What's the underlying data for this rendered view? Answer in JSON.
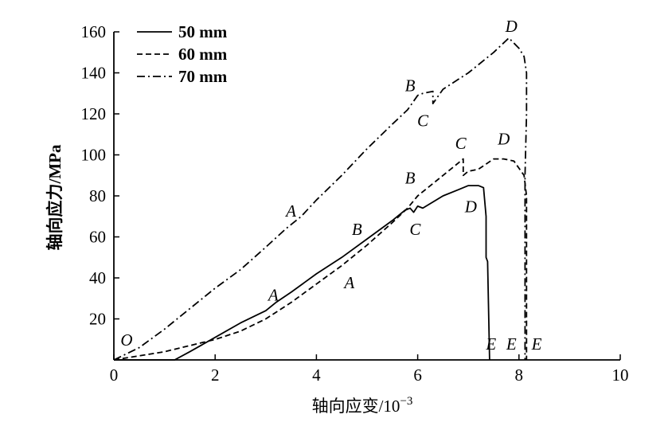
{
  "chart_data": {
    "type": "line",
    "xlabel": "轴向应变/10",
    "xlabel_sup": "−3",
    "ylabel": "轴向应力/MPa",
    "xlim": [
      0,
      10
    ],
    "ylim": [
      0,
      160
    ],
    "xticks": [
      0,
      2,
      4,
      6,
      8,
      10
    ],
    "xtick_labels": [
      "0",
      "2",
      "4",
      "6",
      "8",
      "10"
    ],
    "yticks": [
      20,
      40,
      60,
      80,
      100,
      120,
      140,
      160
    ],
    "ytick_labels": [
      "20",
      "40",
      "60",
      "80",
      "100",
      "120",
      "140",
      "160"
    ],
    "grid": false,
    "legend_position": "top-left",
    "series": [
      {
        "name": "50 mm",
        "dash": "solid",
        "x": [
          0,
          1.2,
          1.5,
          2.0,
          2.5,
          3.0,
          3.2,
          3.5,
          4.0,
          4.5,
          5.0,
          5.5,
          5.75,
          5.85,
          5.92,
          6.0,
          6.1,
          6.5,
          6.8,
          7.0,
          7.2,
          7.3,
          7.35,
          7.35,
          7.38,
          7.42
        ],
        "y": [
          0,
          0,
          4,
          11,
          18,
          24,
          28,
          33,
          42,
          50,
          59,
          68,
          73,
          74,
          72,
          75,
          74,
          80,
          83,
          85,
          85,
          84,
          70,
          50,
          48,
          0
        ]
      },
      {
        "name": "60 mm",
        "dash": "dashed",
        "x": [
          0,
          0.5,
          1.0,
          1.5,
          2.0,
          2.5,
          3.0,
          3.5,
          4.0,
          4.5,
          5.0,
          5.5,
          5.8,
          6.0,
          6.5,
          6.8,
          6.9,
          6.9,
          7.0,
          7.2,
          7.5,
          7.7,
          7.9,
          8.1,
          8.15,
          8.15
        ],
        "y": [
          0,
          2,
          4,
          7,
          10,
          14,
          20,
          28,
          37,
          46,
          56,
          67,
          74,
          80,
          90,
          96,
          98,
          90,
          92,
          93,
          98,
          98,
          97,
          90,
          80,
          0
        ]
      },
      {
        "name": "70 mm",
        "dash": "dashdot",
        "x": [
          0,
          0.5,
          1.0,
          1.5,
          2.0,
          2.5,
          3.0,
          3.4,
          3.7,
          4.0,
          4.5,
          5.0,
          5.5,
          5.8,
          6.0,
          6.1,
          6.3,
          6.3,
          6.5,
          7.0,
          7.5,
          7.8,
          8.0,
          8.1,
          8.15,
          8.15,
          8.12,
          8.12
        ],
        "y": [
          0,
          6,
          15,
          25,
          35,
          44,
          55,
          64,
          70,
          78,
          90,
          103,
          115,
          122,
          129,
          130,
          131,
          125,
          132,
          140,
          150,
          157,
          152,
          148,
          140,
          120,
          90,
          0
        ]
      }
    ],
    "annotations": [
      {
        "text": "O",
        "x": 0.25,
        "y": 7
      },
      {
        "text": "A",
        "x": 3.15,
        "y": 29
      },
      {
        "text": "B",
        "x": 4.8,
        "y": 61
      },
      {
        "text": "C",
        "x": 5.95,
        "y": 61
      },
      {
        "text": "D",
        "x": 7.05,
        "y": 72
      },
      {
        "text": "E",
        "x": 7.45,
        "y": 5
      },
      {
        "text": "A",
        "x": 4.65,
        "y": 35
      },
      {
        "text": "B",
        "x": 5.85,
        "y": 86
      },
      {
        "text": "C",
        "x": 6.85,
        "y": 103
      },
      {
        "text": "D",
        "x": 7.7,
        "y": 105
      },
      {
        "text": "E",
        "x": 7.85,
        "y": 5
      },
      {
        "text": "A",
        "x": 3.5,
        "y": 70
      },
      {
        "text": "B",
        "x": 5.85,
        "y": 131
      },
      {
        "text": "C",
        "x": 6.1,
        "y": 114
      },
      {
        "text": "D",
        "x": 7.85,
        "y": 160
      },
      {
        "text": "E",
        "x": 8.35,
        "y": 5
      }
    ]
  }
}
